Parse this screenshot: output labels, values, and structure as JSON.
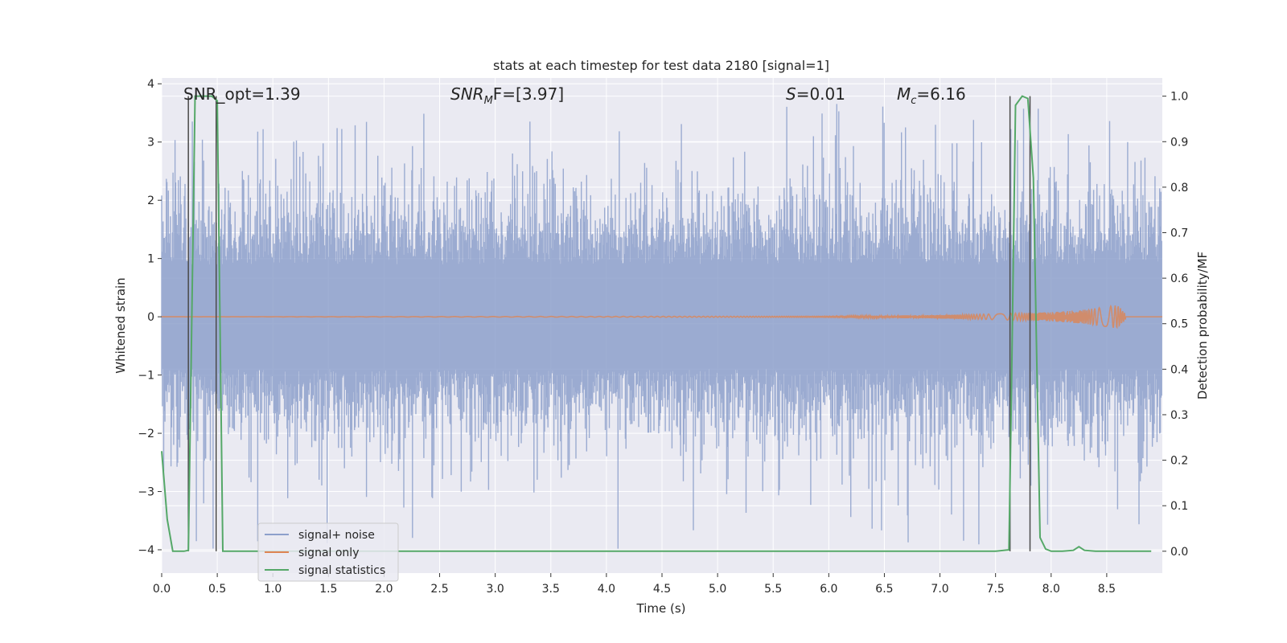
{
  "chart_data": {
    "type": "line",
    "title": "stats at each timestep for test data 2180 [signal=1]",
    "xlabel": "Time (s)",
    "ylabel_left": "Whitened strain",
    "ylabel_right": "Detection probability/MF",
    "xlim": [
      0.0,
      9.0
    ],
    "ylim_left": [
      -4.4,
      4.1
    ],
    "ylim_right": [
      -0.048,
      1.04
    ],
    "x_ticks": [
      "0.0",
      "0.5",
      "1.0",
      "1.5",
      "2.0",
      "2.5",
      "3.0",
      "3.5",
      "4.0",
      "4.5",
      "5.0",
      "5.5",
      "6.0",
      "6.5",
      "7.0",
      "7.5",
      "8.0",
      "8.5"
    ],
    "y_left_ticks": [
      "4",
      "3",
      "2",
      "1",
      "0",
      "−1",
      "−2",
      "−3",
      "−4"
    ],
    "y_right_ticks": [
      "1.0",
      "0.9",
      "0.8",
      "0.7",
      "0.6",
      "0.5",
      "0.4",
      "0.3",
      "0.2",
      "0.1",
      "0.0"
    ],
    "annotations": {
      "snr_opt": "SNR_opt=1.39",
      "snr_mf_prefix": "SNR",
      "snr_mf_sub": "M",
      "snr_mf_suffix": "F=[3.97]",
      "s_symbol": "S",
      "s_value": "=0.01",
      "mc_symbol": "M",
      "mc_sub": "c",
      "mc_value": "=6.16"
    },
    "legend": {
      "location": "lower-left",
      "entries": [
        "signal+ noise",
        "signal only",
        "signal statistics"
      ]
    },
    "colors": {
      "signal_noise": "#8da0cb",
      "signal_only": "#dd8452",
      "signal_statistics": "#55a868",
      "vlines": "#4a4a4a",
      "background": "#eaeaf2",
      "grid": "#ffffff"
    },
    "series": [
      {
        "name": "signal+ noise",
        "description": "whitened strain noise, approx. uniform amplitude with spikes",
        "typical_envelope": [
          -1.5,
          1.5
        ],
        "peak_range": [
          -4.0,
          3.7
        ]
      },
      {
        "name": "signal only",
        "description": "chirp signal growing toward merger",
        "x": [
          0.0,
          6.0,
          7.0,
          7.5,
          8.0,
          8.3,
          8.6,
          8.67
        ],
        "amplitude": [
          0.0,
          0.01,
          0.03,
          0.05,
          0.08,
          0.12,
          0.2,
          0.05
        ]
      },
      {
        "name": "signal statistics",
        "x": [
          0.0,
          0.05,
          0.1,
          0.2,
          0.24,
          0.3,
          0.35,
          0.45,
          0.5,
          0.55,
          0.6,
          1.0,
          3.0,
          5.0,
          7.0,
          7.5,
          7.62,
          7.64,
          7.68,
          7.74,
          7.79,
          7.84,
          7.9,
          7.95,
          8.0,
          8.1,
          8.2,
          8.25,
          8.3,
          8.4,
          8.9
        ],
        "y": [
          0.22,
          0.07,
          0.0,
          0.0,
          0.002,
          1.0,
          1.0,
          1.0,
          0.99,
          0.0,
          0.0,
          0.0,
          0.0,
          0.0,
          0.0,
          0.0,
          0.003,
          0.3,
          0.98,
          1.0,
          0.995,
          0.82,
          0.03,
          0.005,
          0.0,
          0.0,
          0.002,
          0.01,
          0.002,
          0.0,
          0.0
        ]
      }
    ],
    "vertical_markers_x": [
      0.24,
      0.49,
      7.63,
      7.81
    ]
  }
}
